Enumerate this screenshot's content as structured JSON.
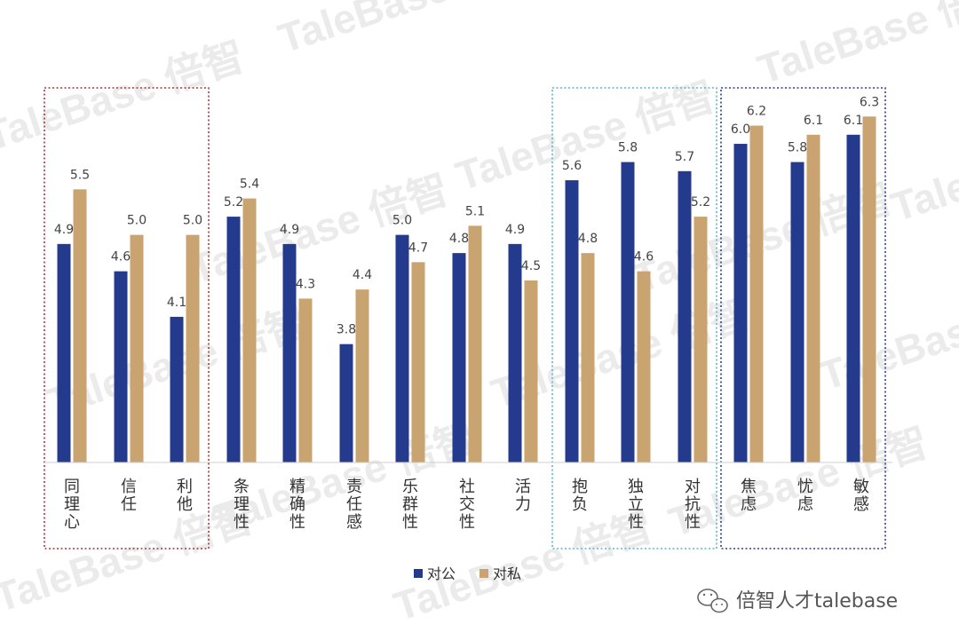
{
  "chart_data": {
    "type": "bar",
    "categories": [
      "同理心",
      "信任",
      "利他",
      "条理性",
      "精确性",
      "责任感",
      "乐群性",
      "社交性",
      "活力",
      "抱负",
      "独立性",
      "对抗性",
      "焦虑",
      "忧虑",
      "敏感"
    ],
    "series": [
      {
        "name": "对公",
        "color": "#243a8c",
        "values": [
          4.9,
          4.6,
          4.1,
          5.2,
          4.9,
          3.8,
          5.0,
          4.8,
          4.9,
          5.6,
          5.8,
          5.7,
          6.0,
          5.8,
          6.1
        ]
      },
      {
        "name": "对私",
        "color": "#c9a470",
        "values": [
          5.5,
          5.0,
          5.0,
          5.4,
          4.3,
          4.4,
          4.7,
          5.1,
          4.5,
          4.8,
          4.6,
          5.2,
          6.2,
          6.1,
          6.3
        ]
      }
    ],
    "value_labels": [
      [
        "4.9",
        "4.6",
        "4.1",
        "5.2",
        "4.9",
        "3.8",
        "5.0",
        "4.8",
        "4.9",
        "5.6",
        "5.8",
        "5.7",
        "6.0",
        "5.8",
        "6.1"
      ],
      [
        "5.5",
        "5.0",
        "5.0",
        "5.4",
        "4.3",
        "4.4",
        "4.7",
        "5.1",
        "4.5",
        "4.8",
        "4.6",
        "5.2",
        "6.2",
        "6.1",
        "6.3"
      ]
    ],
    "ylim": [
      2.5,
      6.8
    ],
    "legend_position": "bottom-center",
    "grid": false,
    "highlight_groups": [
      {
        "categories": [
          "同理心",
          "信任",
          "利他"
        ],
        "color": "#a13a3a",
        "style": "dotted"
      },
      {
        "categories": [
          "抱负",
          "独立性",
          "对抗性"
        ],
        "color": "#5cb6cf",
        "style": "dotted"
      },
      {
        "categories": [
          "焦虑",
          "忧虑",
          "敏感"
        ],
        "color": "#2c3e8f",
        "style": "dotted"
      }
    ],
    "xlabel": "",
    "ylabel": "",
    "title": ""
  },
  "watermark": {
    "text": "TaleBase 倍智"
  },
  "credit": {
    "icon": "wechat-icon",
    "text": "倍智人才talebase"
  }
}
